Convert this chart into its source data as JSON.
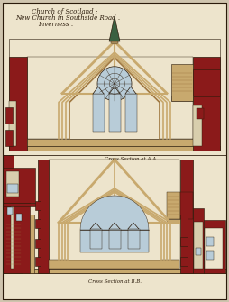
{
  "title_lines": [
    "Church of Scotland ;",
    "New Church in Southside Road .",
    "Inverness ."
  ],
  "label_aa": "Cross Section at A.A.",
  "label_bb": "Cross Section at B.B.",
  "bg_color": "#cfc4ae",
  "paper_color": "#ede4cc",
  "wall_color": "#8b1a1a",
  "timber_color": "#c8a96e",
  "timber_dark": "#a07840",
  "interior_color": "#ede4cc",
  "glass_color": "#b8ccd8",
  "glass_color2": "#c8d8e0",
  "line_color": "#2a1a0a",
  "title_color": "#2a1a0a",
  "label_color": "#2a1a0a",
  "spire_color": "#3a6040",
  "stone_color": "#d8cead"
}
